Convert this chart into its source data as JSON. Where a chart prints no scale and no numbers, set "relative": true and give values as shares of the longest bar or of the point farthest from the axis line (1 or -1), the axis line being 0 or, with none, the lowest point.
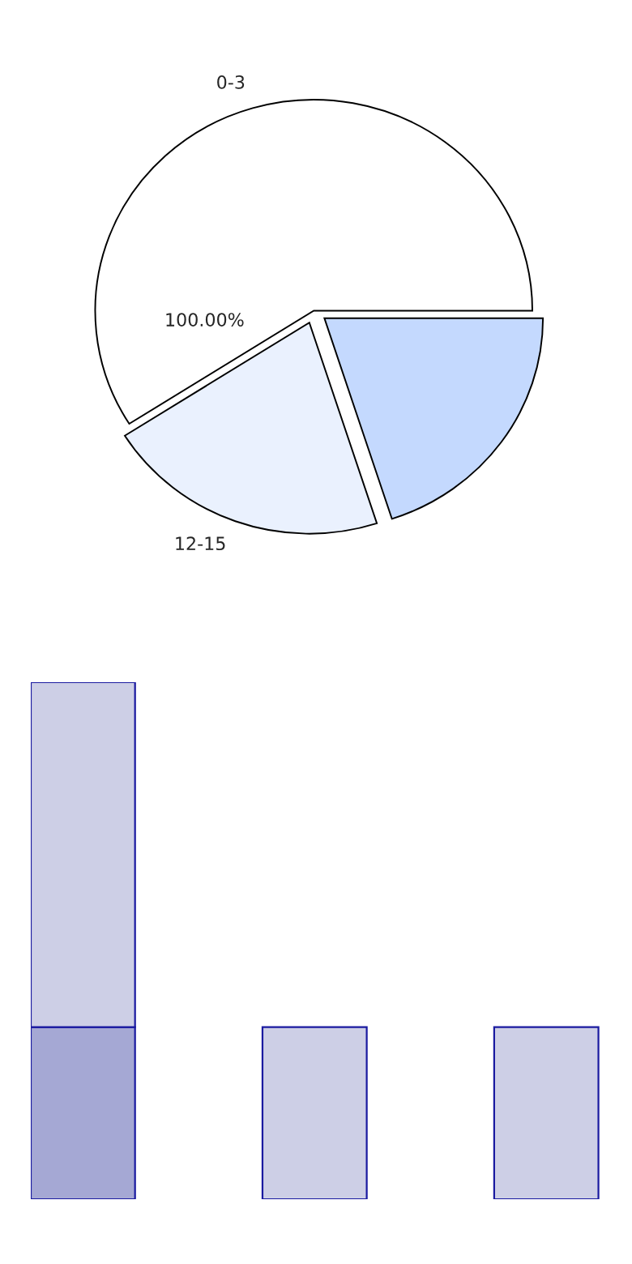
{
  "chart_data": [
    {
      "type": "pie",
      "categories": [
        "0-3",
        "12-15",
        null
      ],
      "values": [
        59,
        21,
        20
      ],
      "colors": [
        "#ffffff",
        "#eaf1fe",
        "#c4d9fe"
      ],
      "annotations": [
        "100.00%"
      ]
    },
    {
      "type": "bar",
      "stacked": true,
      "relative": true,
      "categories": [
        null,
        null,
        null
      ],
      "series": [
        {
          "colors": [
            "#a5a8d4",
            "#cdcfe6",
            "#cdcfe6"
          ],
          "values": [
            0.333,
            0.333,
            0.333
          ]
        },
        {
          "color": "#cdcfe6",
          "values": [
            0.667,
            null,
            null
          ]
        }
      ]
    }
  ]
}
